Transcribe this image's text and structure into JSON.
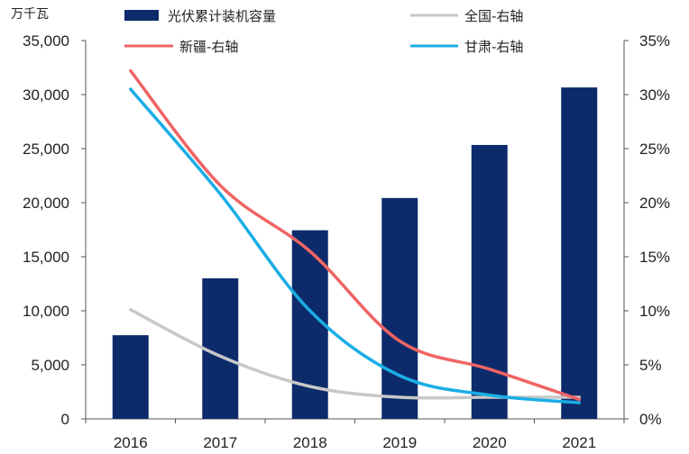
{
  "chart_data": {
    "type": "bar+line",
    "categories": [
      "2016",
      "2017",
      "2018",
      "2019",
      "2020",
      "2021"
    ],
    "left_axis": {
      "unit": "万千瓦",
      "ylim": [
        0,
        35000
      ],
      "ticks": [
        0,
        5000,
        10000,
        15000,
        20000,
        25000,
        30000,
        35000
      ],
      "tick_labels": [
        "0",
        "5,000",
        "10,000",
        "15,000",
        "20,000",
        "25,000",
        "30,000",
        "35,000"
      ]
    },
    "right_axis": {
      "ylim": [
        0,
        35
      ],
      "ticks": [
        0,
        5,
        10,
        15,
        20,
        25,
        30,
        35
      ],
      "tick_labels": [
        "0%",
        "5%",
        "10%",
        "15%",
        "20%",
        "25%",
        "30%",
        "35%"
      ]
    },
    "bar_series": {
      "name": "光伏累计装机容量",
      "color": "#0d2b6b",
      "values": [
        7740,
        13000,
        17450,
        20430,
        25340,
        30660
      ]
    },
    "line_series": [
      {
        "name": "全国-右轴",
        "color": "#c8c8c8",
        "values": [
          10.1,
          5.8,
          3.0,
          2.0,
          2.0,
          2.0
        ]
      },
      {
        "name": "新疆-右轴",
        "color": "#f06464",
        "values": [
          32.2,
          21.6,
          15.5,
          7.2,
          4.6,
          1.8
        ]
      },
      {
        "name": "甘肃-右轴",
        "color": "#1aaee6",
        "values": [
          30.5,
          20.8,
          10.0,
          4.0,
          2.2,
          1.5
        ]
      }
    ]
  }
}
